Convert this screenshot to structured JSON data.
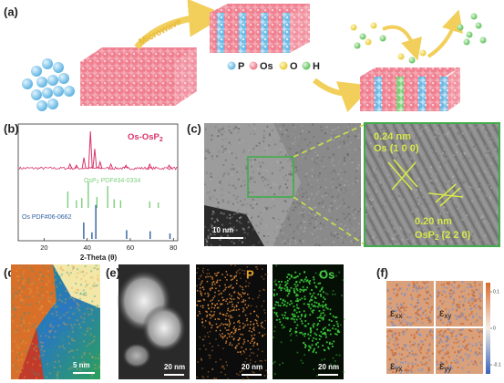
{
  "panel_labels": [
    "(a)",
    "(b)",
    "(c)",
    "(d)",
    "(e)",
    "(f)"
  ],
  "panel_a": {
    "arrow_label": "Microwave",
    "legend": [
      "P",
      "Os",
      "O",
      "H"
    ]
  },
  "panel_b": {
    "sample_label": [
      "Os-OsP",
      "2"
    ],
    "ref1_label": [
      "OsP",
      "2",
      " PDF#34-0334"
    ],
    "ref2_label": "Os PDF#06-0662",
    "xlabel": "2-Theta (θ)",
    "xlim": [
      8,
      82
    ],
    "xticks": [
      20,
      40,
      60,
      80
    ],
    "sample_peaks": {
      "x": [
        32,
        35,
        38.5,
        41.5,
        43.5,
        46,
        51,
        58,
        69,
        78
      ],
      "h": [
        10,
        8,
        22,
        70,
        38,
        14,
        10,
        8,
        10,
        8
      ]
    },
    "ref1_peaks": {
      "x": [
        31,
        35,
        37.5,
        40.5,
        44.5,
        49.5,
        52.5,
        55.5,
        69,
        73
      ],
      "h": [
        30,
        14,
        18,
        48,
        20,
        40,
        16,
        14,
        12,
        10
      ]
    },
    "ref2_peaks": {
      "x": [
        38.4,
        42.2,
        44,
        58.3,
        69.2,
        78.4
      ],
      "h": [
        30,
        12,
        62,
        16,
        14,
        10
      ]
    }
  },
  "panel_c": {
    "scale": "10 nm",
    "d1": "0.24 nm",
    "plane1": "Os (1 0 0)",
    "d2": "0.20 nm",
    "plane2": [
      "OsP",
      "2",
      " (2 2 0)"
    ]
  },
  "panel_d": {
    "scale": "5 nm"
  },
  "panel_e": {
    "scales": [
      "20 nm",
      "20 nm",
      "20 nm"
    ],
    "maps": [
      "P",
      "Os"
    ]
  },
  "panel_f": {
    "tiles": [
      [
        "ε",
        "xx"
      ],
      [
        "ε",
        "xy"
      ],
      [
        "ε",
        "yx"
      ],
      [
        "ε",
        "yy"
      ]
    ],
    "colorbar_ticks": [
      0.1,
      0,
      -0.1
    ]
  }
}
